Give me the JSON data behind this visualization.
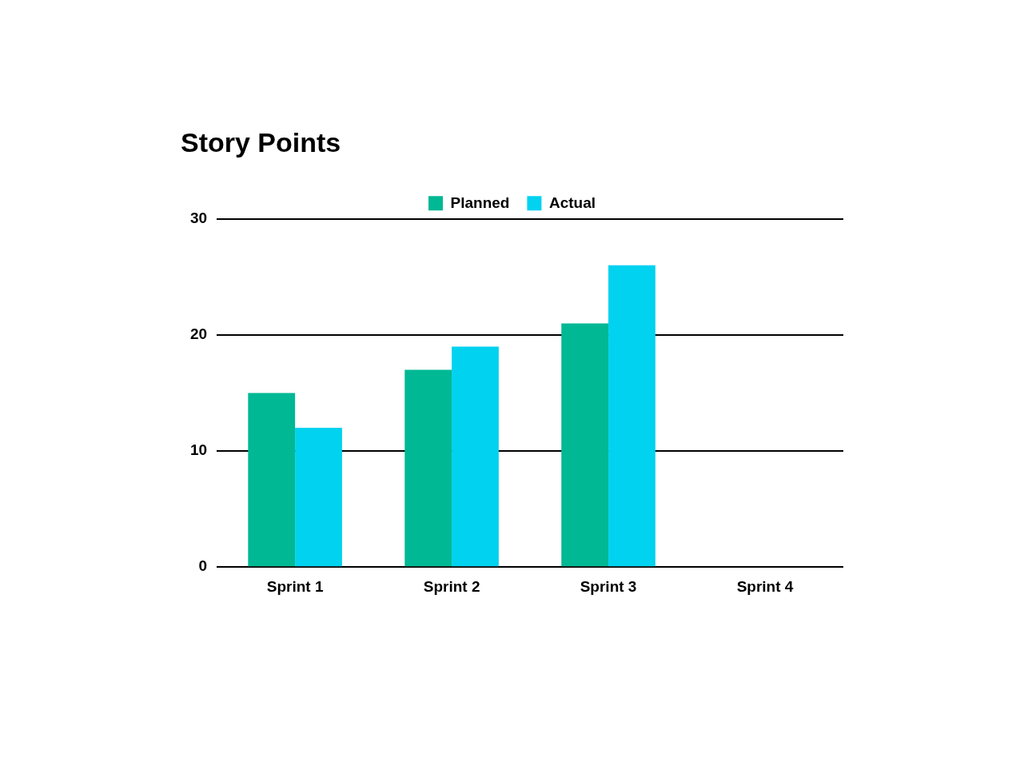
{
  "chart_data": {
    "type": "bar",
    "title": "Story Points",
    "categories": [
      "Sprint 1",
      "Sprint 2",
      "Sprint 3",
      "Sprint 4"
    ],
    "series": [
      {
        "name": "Planned",
        "color": "#00b894",
        "values": [
          15,
          17,
          21,
          null
        ]
      },
      {
        "name": "Actual",
        "color": "#00d2f0",
        "values": [
          12,
          19,
          26,
          null
        ]
      }
    ],
    "ylim": [
      0,
      30
    ],
    "yticks": [
      0,
      10,
      20,
      30
    ],
    "grid": "y",
    "legend": "top"
  }
}
